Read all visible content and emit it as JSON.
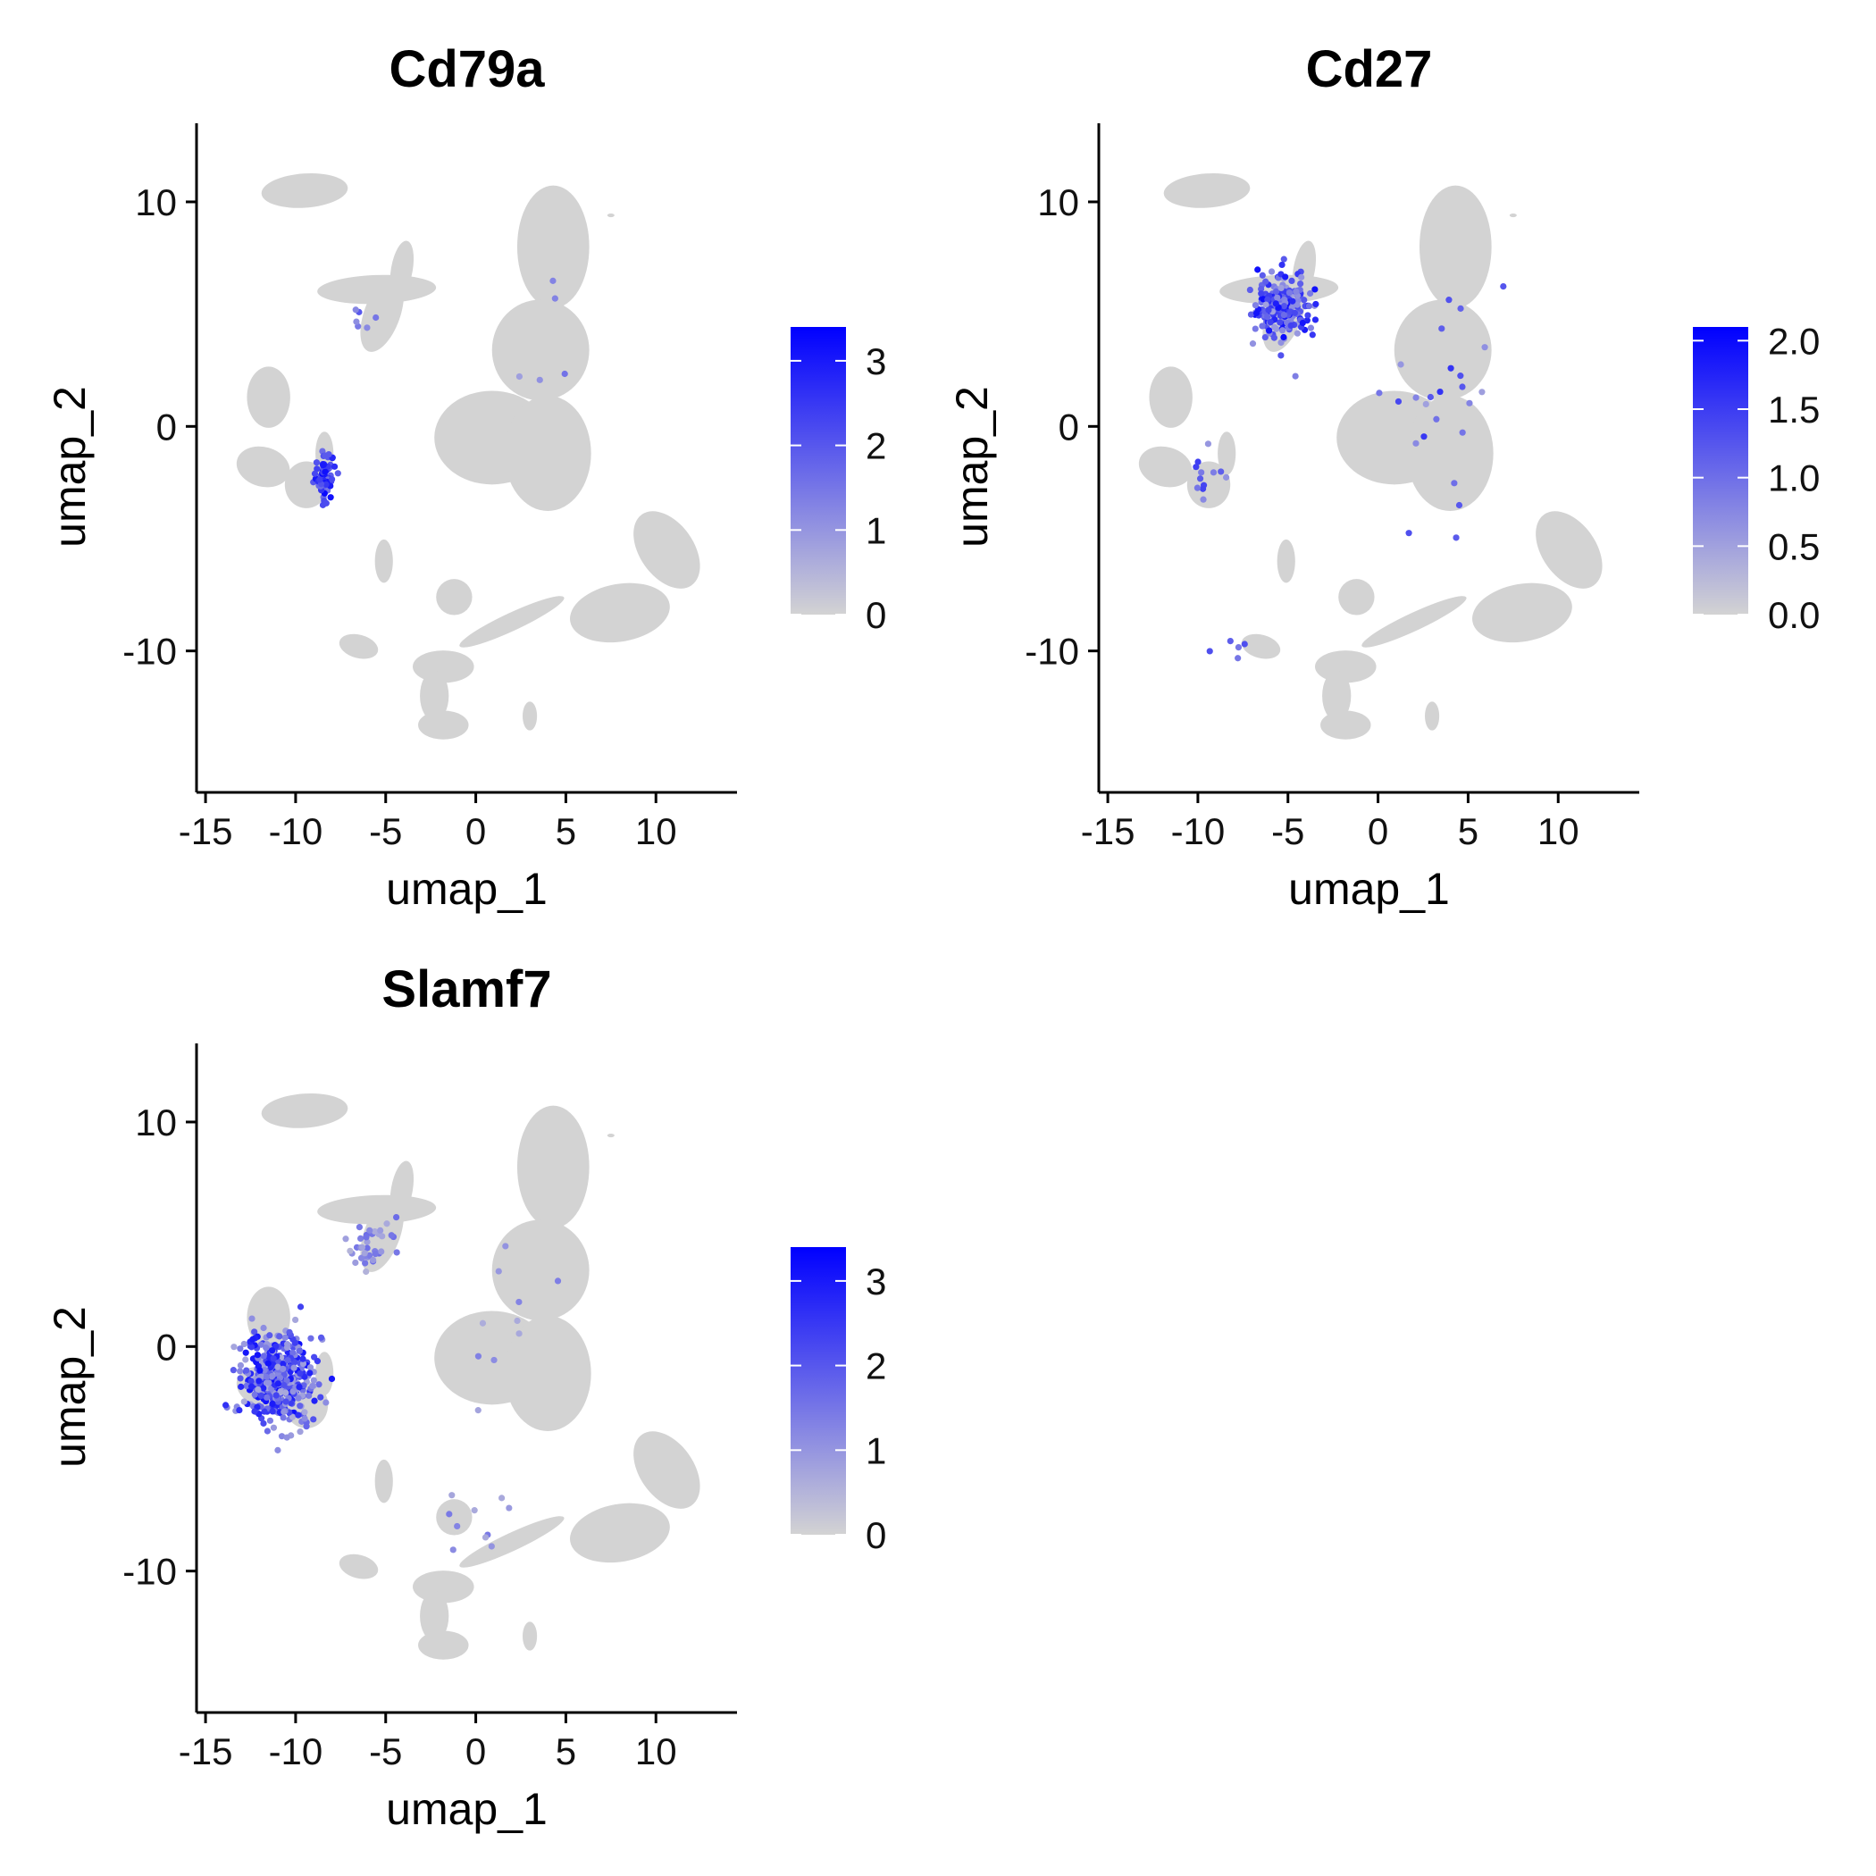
{
  "colors": {
    "low": "#d3d3d3",
    "high": "#0000ff",
    "axis": "#000000"
  },
  "chart_data": [
    {
      "type": "scatter",
      "title": "Cd79a",
      "xlabel": "umap_1",
      "ylabel": "umap_2",
      "xlim": [
        -15.5,
        14.5
      ],
      "ylim": [
        -16.3,
        13.5
      ],
      "xticks": [
        -15,
        -10,
        -5,
        0,
        5,
        10
      ],
      "yticks": [
        -10,
        0,
        10
      ],
      "legend": {
        "placement": "right",
        "min": 0,
        "max": 3.4,
        "ticks": [
          0,
          1,
          2,
          3
        ],
        "tick_labels": [
          "0",
          "1",
          "2",
          "3"
        ]
      },
      "hotspots": [
        {
          "x": -8.4,
          "y": -2.2,
          "sx": 0.5,
          "sy": 0.9,
          "n": 60,
          "vmin": 1.5,
          "vmax": 3.3
        },
        {
          "x": -6.5,
          "y": 4.8,
          "sx": 0.6,
          "sy": 1.2,
          "n": 6,
          "vmin": 0.8,
          "vmax": 2.0
        },
        {
          "x": 3.5,
          "y": 3.0,
          "sx": 2.0,
          "sy": 3.0,
          "n": 5,
          "vmin": 0.8,
          "vmax": 2.0
        }
      ]
    },
    {
      "type": "scatter",
      "title": "Cd27",
      "xlabel": "umap_1",
      "ylabel": "umap_2",
      "xlim": [
        -15.5,
        14.5
      ],
      "ylim": [
        -16.3,
        13.5
      ],
      "xticks": [
        -15,
        -10,
        -5,
        0,
        5,
        10
      ],
      "yticks": [
        -10,
        0,
        10
      ],
      "legend": {
        "placement": "right",
        "min": 0,
        "max": 2.1,
        "ticks": [
          0,
          0.5,
          1,
          1.5,
          2
        ],
        "tick_labels": [
          "0.0",
          "0.5",
          "1.0",
          "1.5",
          "2.0"
        ]
      },
      "hotspots": [
        {
          "x": -5.5,
          "y": 5.5,
          "sx": 1.3,
          "sy": 1.3,
          "n": 220,
          "vmin": 0.5,
          "vmax": 2.0
        },
        {
          "x": 3.5,
          "y": 1.0,
          "sx": 3.0,
          "sy": 5.0,
          "n": 25,
          "vmin": 0.5,
          "vmax": 1.6
        },
        {
          "x": -9.5,
          "y": -2.0,
          "sx": 1.0,
          "sy": 1.2,
          "n": 12,
          "vmin": 0.5,
          "vmax": 1.5
        },
        {
          "x": -8.0,
          "y": -10.0,
          "sx": 0.8,
          "sy": 0.6,
          "n": 5,
          "vmin": 0.6,
          "vmax": 1.5
        }
      ]
    },
    {
      "type": "scatter",
      "title": "Slamf7",
      "xlabel": "umap_1",
      "ylabel": "umap_2",
      "xlim": [
        -15.5,
        14.5
      ],
      "ylim": [
        -16.3,
        13.5
      ],
      "xticks": [
        -15,
        -10,
        -5,
        0,
        5,
        10
      ],
      "yticks": [
        -10,
        0,
        10
      ],
      "legend": {
        "placement": "right",
        "min": 0,
        "max": 3.4,
        "ticks": [
          0,
          1,
          2,
          3
        ],
        "tick_labels": [
          "0",
          "1",
          "2",
          "3"
        ]
      },
      "hotspots": [
        {
          "x": -11.0,
          "y": -1.5,
          "sx": 1.6,
          "sy": 1.6,
          "n": 480,
          "vmin": 0.6,
          "vmax": 3.2
        },
        {
          "x": -6.0,
          "y": 4.5,
          "sx": 1.2,
          "sy": 1.2,
          "n": 40,
          "vmin": 0.5,
          "vmax": 1.8
        },
        {
          "x": 0.0,
          "y": -8.0,
          "sx": 1.5,
          "sy": 1.2,
          "n": 10,
          "vmin": 0.6,
          "vmax": 1.5
        },
        {
          "x": 3.0,
          "y": 2.0,
          "sx": 3.0,
          "sy": 4.0,
          "n": 10,
          "vmin": 0.6,
          "vmax": 1.6
        }
      ]
    }
  ]
}
